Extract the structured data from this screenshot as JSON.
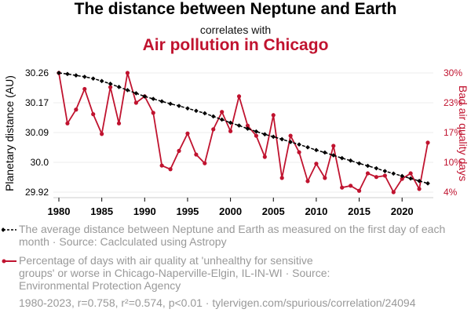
{
  "title": "The distance between Neptune and Earth",
  "subtitle": "correlates with",
  "title2": "Air pollution in Chicago",
  "colors": {
    "series1": "#000000",
    "series2": "#c0132f",
    "grid": "#eeeeee",
    "legend_text": "#999999"
  },
  "legend": [
    {
      "text": "The average distance between Neptune and Earth as measured on the first day of each month · Source: Caclculated using Astropy"
    },
    {
      "text": "Percentage of days with air quality at 'unhealthy for sensitive groups' or worse in Chicago-Naperville-Elgin, IL-IN-WI · Source: Environmental Protection Agency"
    }
  ],
  "footer": "1980-2023, r=0.758, r²=0.574, p<0.01 · tylervigen.com/spurious/correlation/24094",
  "chart_data": {
    "type": "line",
    "title": "The distance between Neptune and Earth correlates with Air pollution in Chicago",
    "xlabel": "",
    "ylabel_left": "Planetary distance (AU)",
    "ylabel_right": "Bad air quality days",
    "x": [
      1980,
      1981,
      1982,
      1983,
      1984,
      1985,
      1986,
      1987,
      1988,
      1989,
      1990,
      1991,
      1992,
      1993,
      1994,
      1995,
      1996,
      1997,
      1998,
      1999,
      2000,
      2001,
      2002,
      2003,
      2004,
      2005,
      2006,
      2007,
      2008,
      2009,
      2010,
      2011,
      2012,
      2013,
      2014,
      2015,
      2016,
      2017,
      2018,
      2019,
      2020,
      2021,
      2022,
      2023
    ],
    "xlim": [
      1980,
      2023
    ],
    "x_ticks": [
      "1980",
      "1985",
      "1990",
      "1995",
      "2000",
      "2005",
      "2010",
      "2015",
      "2020"
    ],
    "y_left_ticks": [
      "30.26",
      "30.17",
      "30.09",
      "30.0",
      "29.92"
    ],
    "y_left_lim": [
      29.92,
      30.26
    ],
    "y_right_ticks": [
      "30%",
      "23%",
      "17%",
      "10%",
      "4%"
    ],
    "y_right_lim": [
      4,
      30
    ],
    "grid": true,
    "legend_position": "bottom",
    "series": [
      {
        "name": "The average distance between Neptune and Earth",
        "axis": "left",
        "style": "dashed-diamond",
        "values": [
          30.26,
          30.257,
          30.253,
          30.249,
          30.244,
          30.237,
          30.229,
          30.22,
          30.211,
          30.202,
          30.193,
          30.186,
          30.179,
          30.172,
          30.166,
          30.159,
          30.152,
          30.145,
          30.136,
          30.127,
          30.118,
          30.11,
          30.101,
          30.093,
          30.085,
          30.078,
          30.071,
          30.063,
          30.056,
          30.048,
          30.04,
          30.033,
          30.025,
          30.017,
          30.01,
          30.002,
          29.995,
          29.988,
          29.98,
          29.973,
          29.966,
          29.959,
          29.952,
          29.945
        ]
      },
      {
        "name": "Percentage of days with bad air quality",
        "axis": "right",
        "style": "solid-dot",
        "values": [
          30,
          19,
          22,
          26.5,
          21,
          16.7,
          26.9,
          19,
          30,
          23.5,
          24.9,
          21.3,
          9.8,
          9,
          13,
          16.8,
          12.2,
          10.3,
          17.7,
          21.5,
          17.3,
          24.9,
          18.5,
          16.3,
          11.7,
          20.8,
          7.1,
          16.3,
          12.7,
          6.4,
          10.2,
          7.1,
          14.1,
          5,
          5.4,
          4.3,
          8.1,
          7.3,
          7.6,
          4,
          6.9,
          8.1,
          4.7,
          14.8
        ]
      }
    ]
  }
}
